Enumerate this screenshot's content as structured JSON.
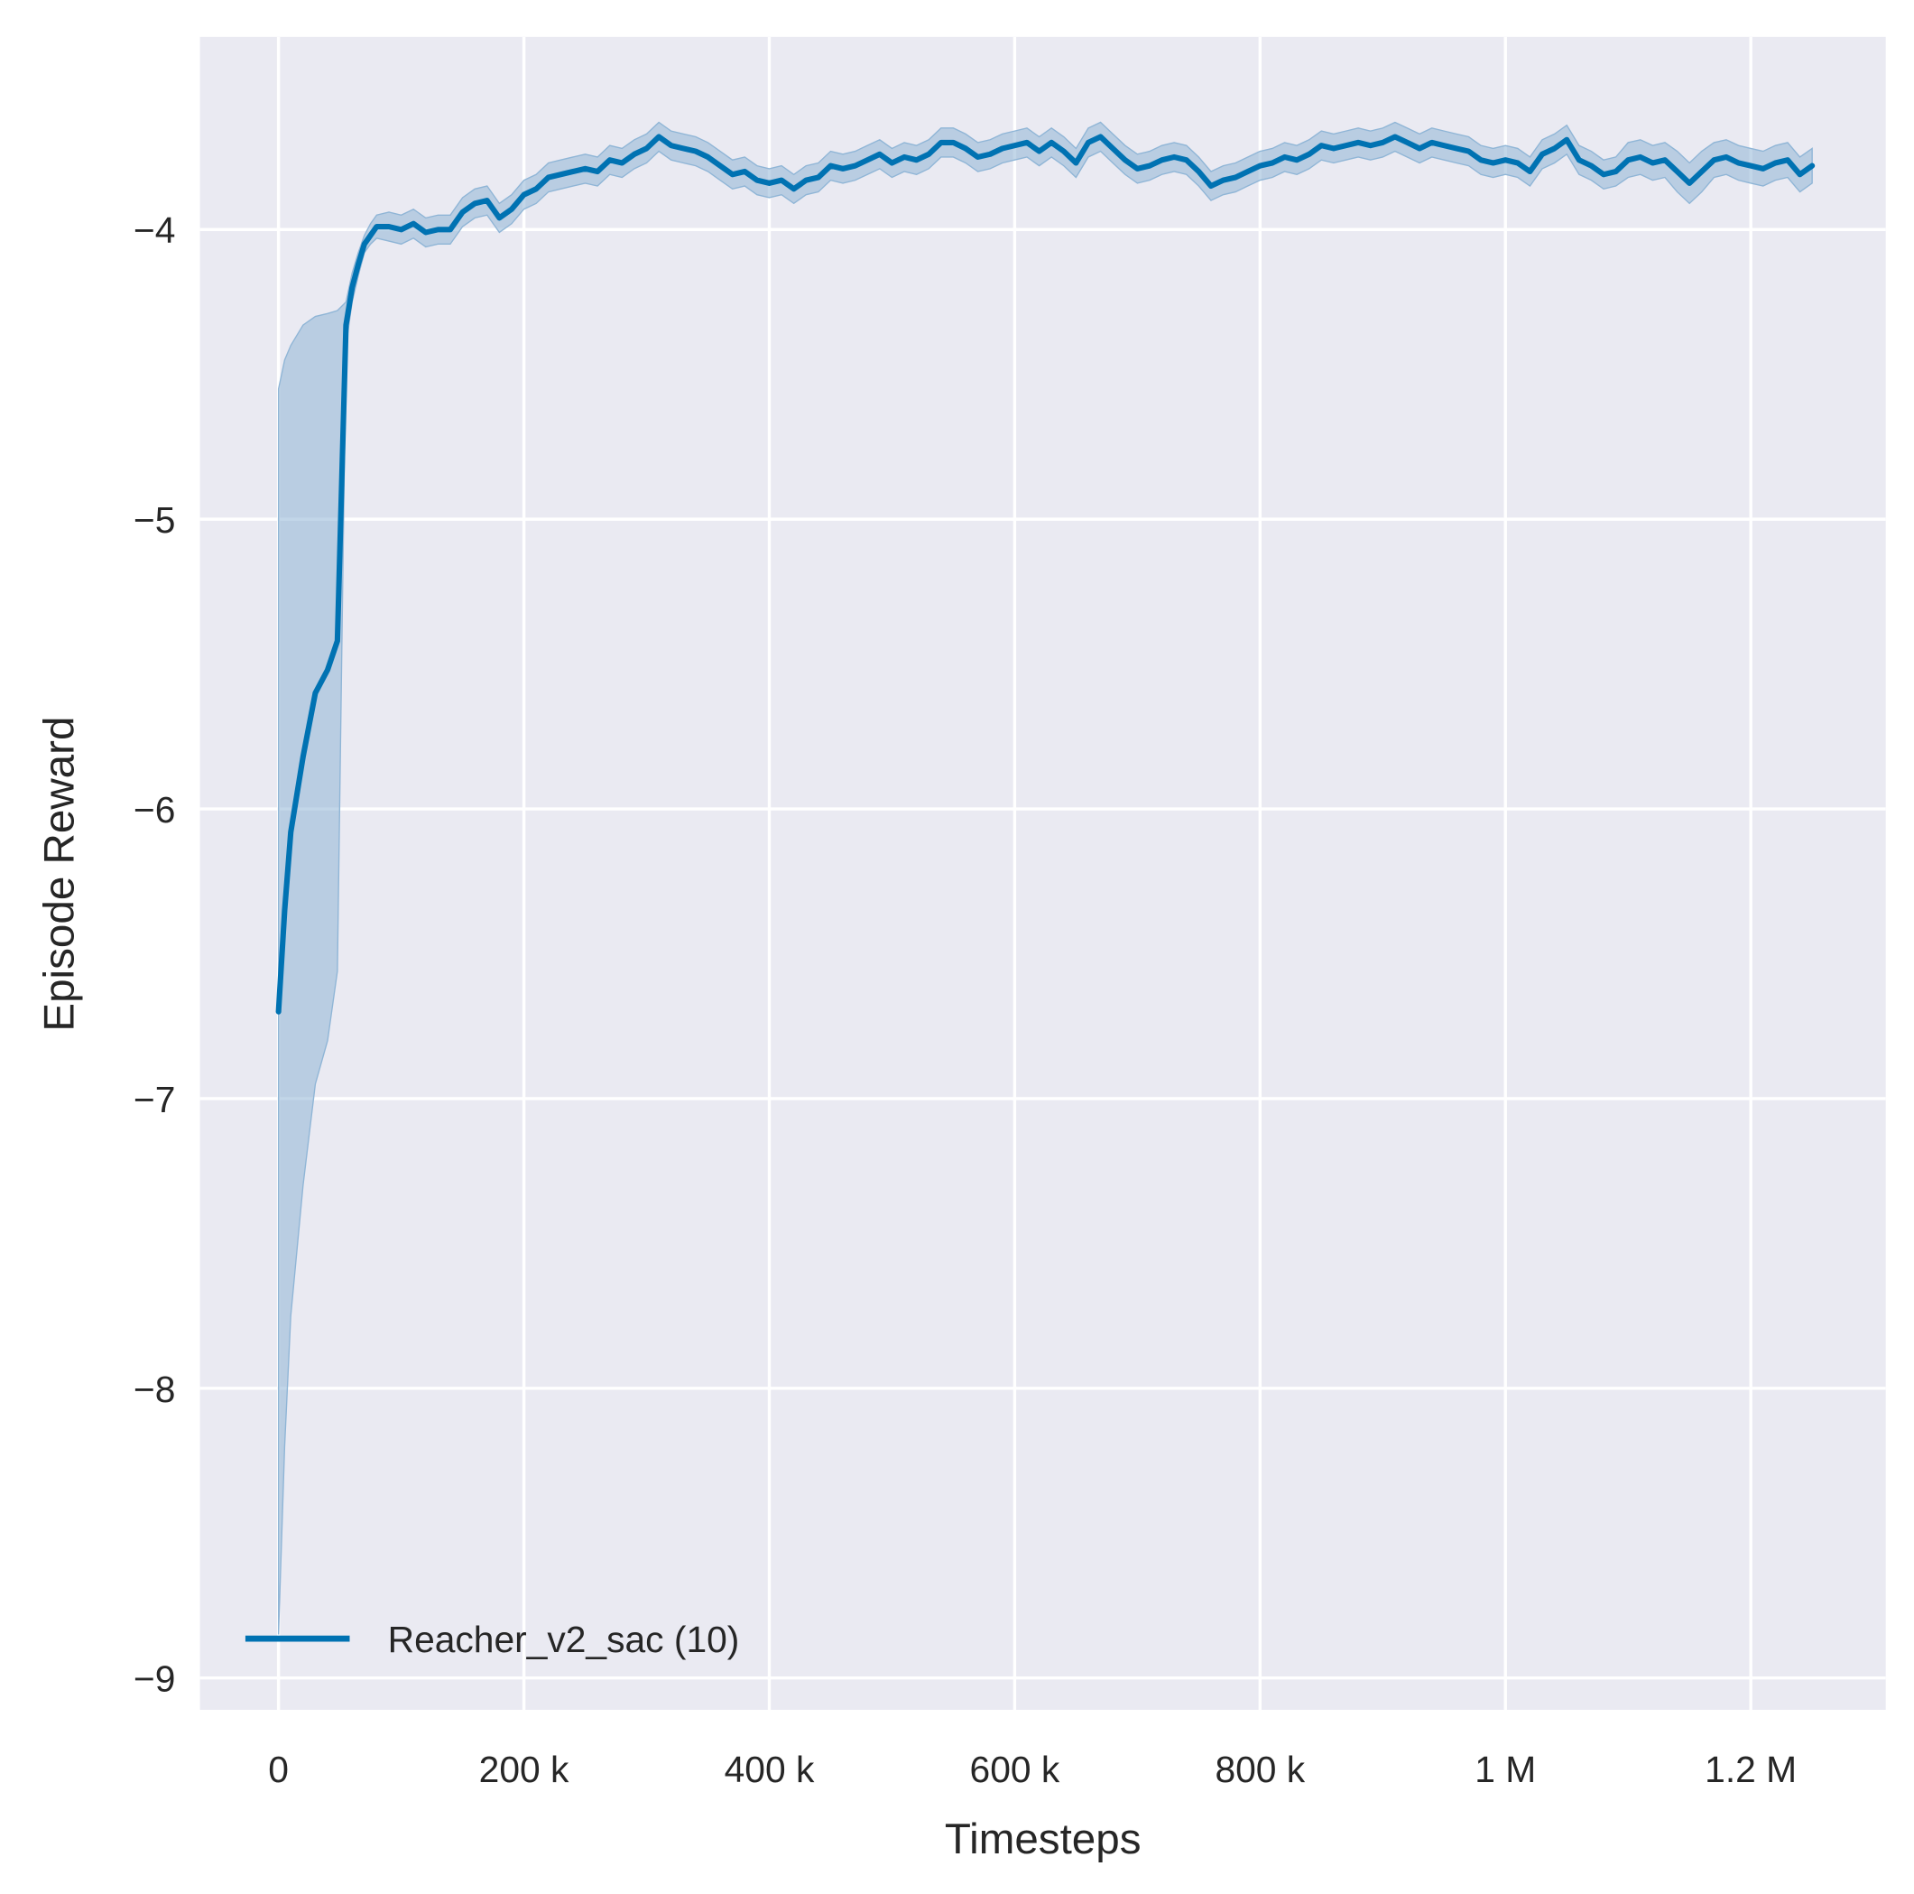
{
  "chart_data": {
    "type": "line",
    "title": "",
    "xlabel": "Timesteps",
    "ylabel": "Episode Reward",
    "xlim": [
      -64000,
      1310000
    ],
    "ylim": [
      -9.11,
      -3.335
    ],
    "grid": true,
    "background_color": "#eaeaf2",
    "legend": {
      "placement": "lower-left",
      "entries": [
        "Reacher_v2_sac (10)"
      ]
    },
    "x_ticks": [
      {
        "value": 0,
        "label": "0"
      },
      {
        "value": 200000,
        "label": "200 k"
      },
      {
        "value": 400000,
        "label": "400 k"
      },
      {
        "value": 600000,
        "label": "600 k"
      },
      {
        "value": 800000,
        "label": "800 k"
      },
      {
        "value": 1000000,
        "label": "1 M"
      },
      {
        "value": 1200000,
        "label": "1.2 M"
      }
    ],
    "y_ticks": [
      {
        "value": -4,
        "label": "−4"
      },
      {
        "value": -5,
        "label": "−5"
      },
      {
        "value": -6,
        "label": "−6"
      },
      {
        "value": -7,
        "label": "−7"
      },
      {
        "value": -8,
        "label": "−8"
      },
      {
        "value": -9,
        "label": "−9"
      }
    ],
    "series": [
      {
        "name": "Reacher_v2_sac (10)",
        "color": "#0072b2",
        "band_color": "#8fb5d6",
        "x": [
          0,
          5000,
          10000,
          20000,
          30000,
          40000,
          48000,
          55000,
          60000,
          65000,
          70000,
          75000,
          80000,
          90000,
          100000,
          110000,
          120000,
          130000,
          140000,
          150000,
          160000,
          170000,
          180000,
          190000,
          200000,
          210000,
          220000,
          230000,
          240000,
          250000,
          260000,
          270000,
          280000,
          290000,
          300000,
          310000,
          320000,
          330000,
          340000,
          350000,
          360000,
          370000,
          380000,
          390000,
          400000,
          410000,
          420000,
          430000,
          440000,
          450000,
          460000,
          470000,
          480000,
          490000,
          500000,
          510000,
          520000,
          530000,
          540000,
          550000,
          560000,
          570000,
          580000,
          590000,
          600000,
          610000,
          620000,
          630000,
          640000,
          650000,
          660000,
          670000,
          680000,
          690000,
          700000,
          710000,
          720000,
          730000,
          740000,
          750000,
          760000,
          770000,
          780000,
          790000,
          800000,
          810000,
          820000,
          830000,
          840000,
          850000,
          860000,
          870000,
          880000,
          890000,
          900000,
          910000,
          920000,
          930000,
          940000,
          950000,
          960000,
          970000,
          980000,
          990000,
          1000000,
          1010000,
          1020000,
          1030000,
          1040000,
          1050000,
          1060000,
          1070000,
          1080000,
          1090000,
          1100000,
          1110000,
          1120000,
          1130000,
          1140000,
          1150000,
          1160000,
          1170000,
          1180000,
          1190000,
          1200000,
          1210000,
          1220000,
          1230000,
          1240000,
          1250000
        ],
        "y": [
          -6.7,
          -6.35,
          -6.08,
          -5.82,
          -5.6,
          -5.52,
          -5.42,
          -4.33,
          -4.2,
          -4.12,
          -4.05,
          -4.02,
          -3.99,
          -3.99,
          -4.0,
          -3.98,
          -4.01,
          -4.0,
          -4.0,
          -3.94,
          -3.91,
          -3.9,
          -3.96,
          -3.93,
          -3.88,
          -3.86,
          -3.82,
          -3.81,
          -3.8,
          -3.79,
          -3.8,
          -3.76,
          -3.77,
          -3.74,
          -3.72,
          -3.68,
          -3.71,
          -3.72,
          -3.73,
          -3.75,
          -3.78,
          -3.81,
          -3.8,
          -3.83,
          -3.84,
          -3.83,
          -3.86,
          -3.83,
          -3.82,
          -3.78,
          -3.79,
          -3.78,
          -3.76,
          -3.74,
          -3.77,
          -3.75,
          -3.76,
          -3.74,
          -3.7,
          -3.7,
          -3.72,
          -3.75,
          -3.74,
          -3.72,
          -3.71,
          -3.7,
          -3.73,
          -3.7,
          -3.73,
          -3.77,
          -3.7,
          -3.68,
          -3.72,
          -3.76,
          -3.79,
          -3.78,
          -3.76,
          -3.75,
          -3.76,
          -3.8,
          -3.85,
          -3.83,
          -3.82,
          -3.8,
          -3.78,
          -3.77,
          -3.75,
          -3.76,
          -3.74,
          -3.71,
          -3.72,
          -3.71,
          -3.7,
          -3.71,
          -3.7,
          -3.68,
          -3.7,
          -3.72,
          -3.7,
          -3.71,
          -3.72,
          -3.73,
          -3.76,
          -3.77,
          -3.76,
          -3.77,
          -3.8,
          -3.74,
          -3.72,
          -3.69,
          -3.76,
          -3.78,
          -3.81,
          -3.8,
          -3.76,
          -3.75,
          -3.77,
          -3.76,
          -3.8,
          -3.84,
          -3.8,
          -3.76,
          -3.75,
          -3.77,
          -3.78,
          -3.79,
          -3.77,
          -3.76,
          -3.81,
          -3.78
        ],
        "ci_upper": [
          -4.55,
          -4.45,
          -4.4,
          -4.33,
          -4.3,
          -4.29,
          -4.28,
          -4.25,
          -4.15,
          -4.08,
          -4.02,
          -3.98,
          -3.95,
          -3.94,
          -3.95,
          -3.93,
          -3.96,
          -3.95,
          -3.95,
          -3.89,
          -3.86,
          -3.85,
          -3.91,
          -3.88,
          -3.83,
          -3.81,
          -3.77,
          -3.76,
          -3.75,
          -3.74,
          -3.75,
          -3.71,
          -3.72,
          -3.69,
          -3.67,
          -3.63,
          -3.66,
          -3.67,
          -3.68,
          -3.7,
          -3.73,
          -3.76,
          -3.75,
          -3.78,
          -3.79,
          -3.78,
          -3.81,
          -3.78,
          -3.77,
          -3.73,
          -3.74,
          -3.73,
          -3.71,
          -3.69,
          -3.72,
          -3.7,
          -3.71,
          -3.69,
          -3.65,
          -3.65,
          -3.67,
          -3.7,
          -3.69,
          -3.67,
          -3.66,
          -3.65,
          -3.68,
          -3.65,
          -3.68,
          -3.72,
          -3.65,
          -3.63,
          -3.67,
          -3.71,
          -3.74,
          -3.73,
          -3.71,
          -3.7,
          -3.71,
          -3.75,
          -3.8,
          -3.78,
          -3.77,
          -3.75,
          -3.73,
          -3.72,
          -3.7,
          -3.71,
          -3.69,
          -3.66,
          -3.67,
          -3.66,
          -3.65,
          -3.66,
          -3.65,
          -3.63,
          -3.65,
          -3.67,
          -3.65,
          -3.66,
          -3.67,
          -3.68,
          -3.71,
          -3.72,
          -3.71,
          -3.72,
          -3.75,
          -3.69,
          -3.67,
          -3.64,
          -3.71,
          -3.73,
          -3.76,
          -3.75,
          -3.7,
          -3.69,
          -3.71,
          -3.7,
          -3.73,
          -3.77,
          -3.73,
          -3.7,
          -3.69,
          -3.71,
          -3.72,
          -3.73,
          -3.71,
          -3.7,
          -3.75,
          -3.72
        ],
        "ci_lower": [
          -8.85,
          -8.2,
          -7.75,
          -7.3,
          -6.95,
          -6.8,
          -6.56,
          -4.4,
          -4.25,
          -4.16,
          -4.08,
          -4.05,
          -4.03,
          -4.04,
          -4.05,
          -4.03,
          -4.06,
          -4.05,
          -4.05,
          -3.99,
          -3.96,
          -3.95,
          -4.01,
          -3.98,
          -3.93,
          -3.91,
          -3.87,
          -3.86,
          -3.85,
          -3.84,
          -3.85,
          -3.81,
          -3.82,
          -3.79,
          -3.77,
          -3.73,
          -3.76,
          -3.77,
          -3.78,
          -3.8,
          -3.83,
          -3.86,
          -3.85,
          -3.88,
          -3.89,
          -3.88,
          -3.91,
          -3.88,
          -3.87,
          -3.83,
          -3.84,
          -3.83,
          -3.81,
          -3.79,
          -3.82,
          -3.8,
          -3.81,
          -3.79,
          -3.75,
          -3.75,
          -3.77,
          -3.8,
          -3.79,
          -3.77,
          -3.76,
          -3.75,
          -3.78,
          -3.75,
          -3.78,
          -3.82,
          -3.75,
          -3.73,
          -3.77,
          -3.81,
          -3.84,
          -3.83,
          -3.81,
          -3.8,
          -3.81,
          -3.85,
          -3.9,
          -3.88,
          -3.87,
          -3.85,
          -3.83,
          -3.82,
          -3.8,
          -3.81,
          -3.79,
          -3.76,
          -3.77,
          -3.76,
          -3.75,
          -3.76,
          -3.75,
          -3.73,
          -3.75,
          -3.77,
          -3.75,
          -3.76,
          -3.77,
          -3.78,
          -3.81,
          -3.82,
          -3.81,
          -3.82,
          -3.85,
          -3.79,
          -3.77,
          -3.74,
          -3.81,
          -3.83,
          -3.86,
          -3.85,
          -3.82,
          -3.81,
          -3.83,
          -3.82,
          -3.87,
          -3.91,
          -3.87,
          -3.82,
          -3.81,
          -3.83,
          -3.84,
          -3.85,
          -3.83,
          -3.82,
          -3.87,
          -3.84
        ]
      }
    ]
  }
}
